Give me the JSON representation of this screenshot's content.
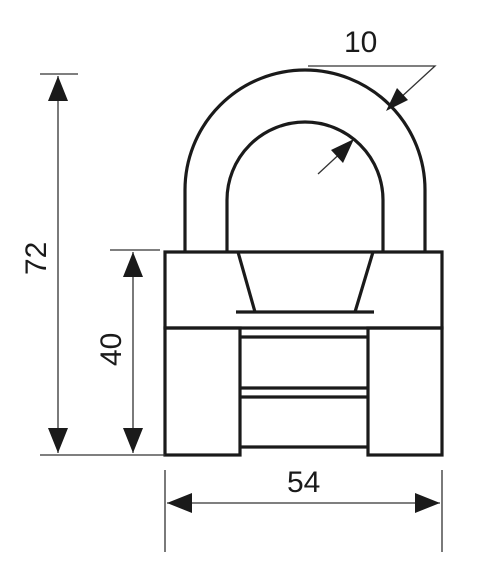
{
  "dimensions": {
    "wall_thickness": "10",
    "total_height": "72",
    "body_height": "40",
    "body_width": "54"
  },
  "colors": {
    "line": "#1a1a1a",
    "background": "#ffffff"
  }
}
